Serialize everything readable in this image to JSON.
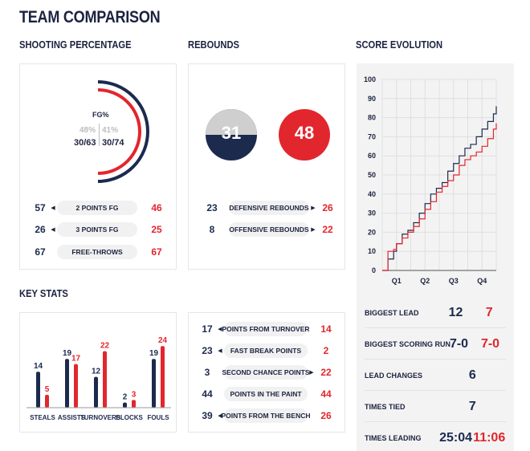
{
  "title": "TEAM COMPARISON",
  "colors": {
    "navy": "#1c2a4e",
    "red": "#e2262e",
    "gray": "#cfcfcf"
  },
  "shooting": {
    "heading": "SHOOTING PERCENTAGE",
    "fg_label": "FG%",
    "team1_pct": "48%",
    "team2_pct": "41%",
    "team1_made": "30/63",
    "team2_made": "30/74",
    "rows": [
      {
        "label": "2 POINTS FG",
        "left": "57",
        "right": "46",
        "arrow": "left"
      },
      {
        "label": "3 POINTS FG",
        "left": "26",
        "right": "25",
        "arrow": "left"
      },
      {
        "label": "FREE-THROWS",
        "left": "67",
        "right": "67",
        "arrow": ""
      }
    ]
  },
  "rebounds": {
    "heading": "REBOUNDS",
    "team1_total": "31",
    "team2_total": "48",
    "rows": [
      {
        "label": "DEFENSIVE REBOUNDS",
        "left": "23",
        "right": "26",
        "arrow": "right"
      },
      {
        "label": "OFFENSIVE REBOUNDS",
        "left": "8",
        "right": "22",
        "arrow": "right"
      }
    ]
  },
  "key_stats": {
    "heading": "KEY STATS",
    "categories": [
      "STEALS",
      "ASSISTS",
      "TURNOVERS",
      "BLOCKS",
      "FOULS"
    ],
    "team1": [
      14,
      19,
      12,
      2,
      19
    ],
    "team2": [
      5,
      17,
      22,
      3,
      24
    ]
  },
  "points": {
    "rows": [
      {
        "label": "POINTS FROM TURNOVER",
        "left": "17",
        "right": "14",
        "arrow": "left"
      },
      {
        "label": "FAST BREAK POINTS",
        "left": "23",
        "right": "2",
        "arrow": "left"
      },
      {
        "label": "SECOND CHANCE POINTS",
        "left": "3",
        "right": "22",
        "arrow": "right"
      },
      {
        "label": "POINTS IN THE PAINT",
        "left": "44",
        "right": "44",
        "arrow": ""
      },
      {
        "label": "POINTS FROM THE BENCH",
        "left": "39",
        "right": "26",
        "arrow": "left"
      }
    ]
  },
  "score_evolution": {
    "heading": "SCORE EVOLUTION",
    "summary": [
      {
        "label": "BIGGEST LEAD",
        "left": "12",
        "right": "7"
      },
      {
        "label": "BIGGEST SCORING RUN",
        "left": "7-0",
        "right": "7-0"
      },
      {
        "label": "LEAD CHANGES",
        "single": "6"
      },
      {
        "label": "TIMES TIED",
        "single": "7"
      },
      {
        "label": "TIMES LEADING",
        "left": "25:04",
        "right": "11:06"
      }
    ]
  },
  "chart_data": {
    "type": "line",
    "title": "SCORE EVOLUTION",
    "xlabel": "",
    "ylabel": "",
    "categories": [
      "Q1",
      "Q2",
      "Q3",
      "Q4"
    ],
    "y_ticks": [
      "0",
      "10",
      "20",
      "30",
      "40",
      "50",
      "60",
      "70",
      "80",
      "90",
      "100"
    ],
    "ylim": [
      0,
      100
    ],
    "xlim": [
      0,
      40
    ],
    "grid": true,
    "series": [
      {
        "color": "#1c2a4e",
        "x": [
          0,
          2,
          4,
          5,
          7,
          9,
          11,
          13,
          15,
          17,
          19,
          21,
          23,
          25,
          27,
          29,
          31,
          33,
          35,
          37,
          39,
          40
        ],
        "y": [
          0,
          6,
          10,
          14,
          19,
          21,
          25,
          30,
          35,
          40,
          43,
          46,
          52,
          56,
          60,
          64,
          66,
          70,
          74,
          78,
          82,
          86
        ]
      },
      {
        "color": "#e2262e",
        "x": [
          0,
          2,
          4,
          5,
          7,
          9,
          11,
          13,
          15,
          17,
          19,
          21,
          23,
          25,
          27,
          29,
          31,
          33,
          35,
          37,
          39,
          40
        ],
        "y": [
          0,
          10,
          11,
          14,
          17,
          20,
          23,
          27,
          32,
          36,
          41,
          44,
          47,
          50,
          55,
          58,
          60,
          62,
          65,
          69,
          74,
          77
        ]
      }
    ]
  }
}
